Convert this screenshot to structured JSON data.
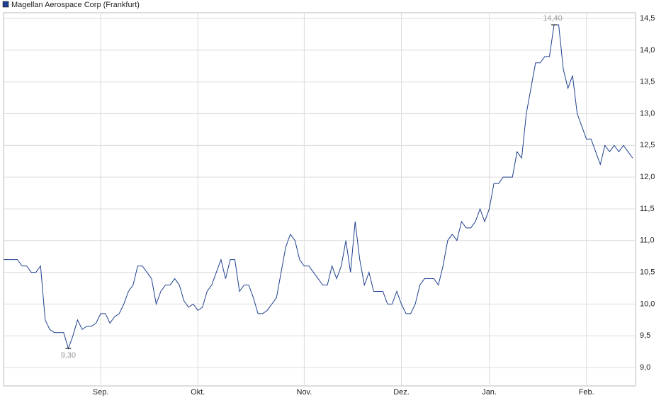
{
  "chart_data": {
    "type": "line",
    "series": [
      {
        "name": "Magellan Aerospace Corp (Frankfurt)",
        "color": "#1f3f8f",
        "values": [
          10.7,
          10.7,
          10.7,
          10.7,
          10.6,
          10.6,
          10.5,
          10.5,
          10.6,
          9.75,
          9.6,
          9.55,
          9.55,
          9.55,
          9.3,
          9.5,
          9.75,
          9.6,
          9.65,
          9.65,
          9.7,
          9.85,
          9.85,
          9.7,
          9.8,
          9.85,
          10.0,
          10.2,
          10.3,
          10.6,
          10.6,
          10.5,
          10.4,
          10.0,
          10.2,
          10.3,
          10.3,
          10.4,
          10.3,
          10.05,
          9.95,
          10.0,
          9.9,
          9.95,
          10.2,
          10.3,
          10.5,
          10.7,
          10.4,
          10.7,
          10.7,
          10.2,
          10.3,
          10.3,
          10.1,
          9.85,
          9.85,
          9.9,
          10.0,
          10.1,
          10.5,
          10.9,
          11.1,
          11.0,
          10.7,
          10.6,
          10.6,
          10.5,
          10.4,
          10.3,
          10.3,
          10.6,
          10.4,
          10.6,
          11.0,
          10.5,
          11.3,
          10.7,
          10.3,
          10.5,
          10.2,
          10.2,
          10.2,
          10.0,
          10.0,
          10.2,
          10.0,
          9.85,
          9.85,
          10.0,
          10.3,
          10.4,
          10.4,
          10.4,
          10.3,
          10.6,
          11.0,
          11.1,
          11.0,
          11.3,
          11.2,
          11.2,
          11.3,
          11.5,
          11.3,
          11.5,
          11.9,
          11.9,
          12.0,
          12.0,
          12.0,
          12.4,
          12.3,
          13.0,
          13.4,
          13.8,
          13.8,
          13.9,
          13.9,
          14.4,
          14.4,
          13.7,
          13.4,
          13.6,
          13.0,
          12.8,
          12.6,
          12.6,
          12.4,
          12.2,
          12.5,
          12.4,
          12.5,
          12.4,
          12.5,
          12.4,
          12.3
        ]
      }
    ],
    "categories": [
      null,
      null,
      null,
      null,
      null,
      null,
      null,
      null,
      null,
      null,
      null,
      null,
      null,
      null,
      null,
      null,
      null,
      null,
      null,
      null,
      null,
      "Sep.",
      null,
      null,
      null,
      null,
      null,
      null,
      null,
      null,
      null,
      null,
      null,
      null,
      null,
      null,
      null,
      null,
      null,
      null,
      null,
      null,
      "Okt.",
      null,
      null,
      null,
      null,
      null,
      null,
      null,
      null,
      null,
      null,
      null,
      null,
      null,
      null,
      null,
      null,
      null,
      null,
      null,
      null,
      null,
      null,
      "Nov.",
      null,
      null,
      null,
      null,
      null,
      null,
      null,
      null,
      null,
      null,
      null,
      null,
      null,
      null,
      null,
      null,
      null,
      null,
      null,
      null,
      "Dez.",
      null,
      null,
      null,
      null,
      null,
      null,
      null,
      null,
      null,
      null,
      null,
      null,
      null,
      null,
      null,
      null,
      null,
      null,
      "Jan.",
      null,
      null,
      null,
      null,
      null,
      null,
      null,
      null,
      null,
      null,
      null,
      null,
      null,
      null,
      null,
      null,
      null,
      null,
      null,
      null,
      "Feb.",
      null,
      null,
      null,
      null,
      null,
      null,
      null,
      null,
      null,
      null
    ],
    "max_label": "14,40",
    "min_label": "9,30",
    "ylim": [
      8.71,
      14.59
    ],
    "yticks": [
      {
        "value": 9.0,
        "label": "9,0"
      },
      {
        "value": 9.5,
        "label": "9,5"
      },
      {
        "value": 10.0,
        "label": "10,0"
      },
      {
        "value": 10.5,
        "label": "10,5"
      },
      {
        "value": 11.0,
        "label": "11,0"
      },
      {
        "value": 11.5,
        "label": "11,5"
      },
      {
        "value": 12.0,
        "label": "12,0"
      },
      {
        "value": 12.5,
        "label": "12,5"
      },
      {
        "value": 13.0,
        "label": "13,0"
      },
      {
        "value": 13.5,
        "label": "13,5"
      },
      {
        "value": 14.0,
        "label": "14,0"
      },
      {
        "value": 14.5,
        "label": "14,5"
      }
    ],
    "grid": true,
    "legend": "top-left"
  }
}
